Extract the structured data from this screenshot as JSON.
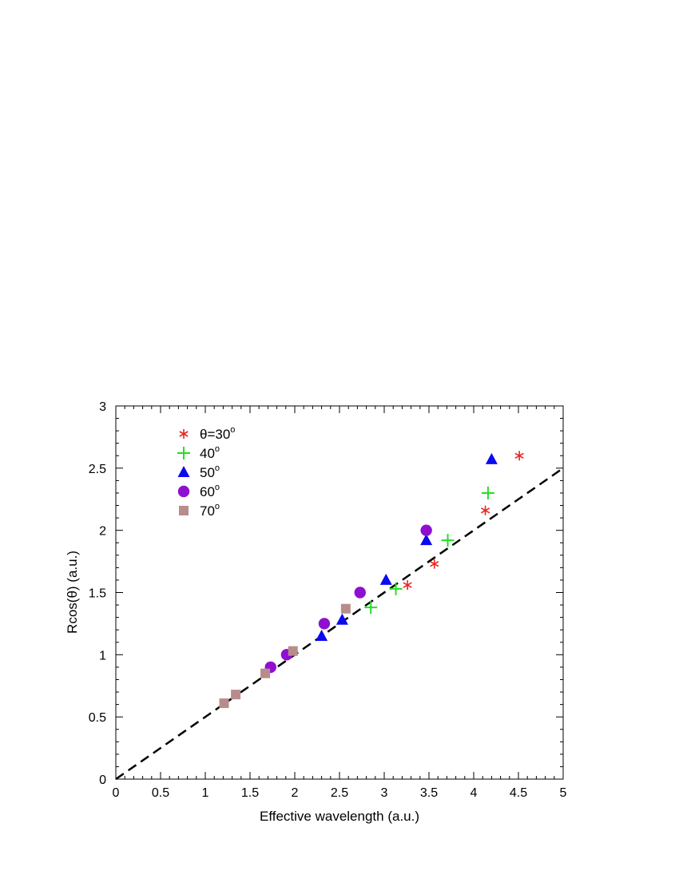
{
  "chart_data": {
    "type": "scatter",
    "xlabel": "Effective wavelength (a.u.)",
    "ylabel": "Rcos(θ) (a.u.)",
    "xlim": [
      0,
      5
    ],
    "ylim": [
      0,
      3
    ],
    "x_ticks": [
      "0",
      "0.5",
      "1",
      "1.5",
      "2",
      "2.5",
      "3",
      "3.5",
      "4",
      "4.5",
      "5"
    ],
    "y_ticks": [
      "0",
      "0.5",
      "1",
      "1.5",
      "2",
      "2.5",
      "3"
    ],
    "grid": false,
    "legend_position": "top-left",
    "series": [
      {
        "name": "θ=30°",
        "legend_text": "θ=30",
        "degree_mark": "o",
        "marker": "asterisk",
        "color": "#e8261f",
        "points": [
          [
            3.26,
            1.56
          ],
          [
            3.56,
            1.73
          ],
          [
            4.13,
            2.16
          ],
          [
            4.51,
            2.6
          ]
        ]
      },
      {
        "name": "40°",
        "legend_text": "40",
        "degree_mark": "o",
        "marker": "plus",
        "color": "#22e022",
        "points": [
          [
            2.85,
            1.38
          ],
          [
            3.13,
            1.53
          ],
          [
            3.71,
            1.92
          ],
          [
            4.16,
            2.3
          ]
        ]
      },
      {
        "name": "50°",
        "legend_text": "50",
        "degree_mark": "o",
        "marker": "triangle",
        "color": "#0a0af0",
        "points": [
          [
            2.3,
            1.15
          ],
          [
            2.53,
            1.28
          ],
          [
            3.02,
            1.6
          ],
          [
            3.47,
            1.92
          ],
          [
            4.2,
            2.57
          ]
        ]
      },
      {
        "name": "60°",
        "legend_text": "60",
        "degree_mark": "o",
        "marker": "circle",
        "color": "#8f0fd0",
        "points": [
          [
            1.73,
            0.9
          ],
          [
            1.91,
            1.0
          ],
          [
            2.33,
            1.25
          ],
          [
            2.73,
            1.5
          ],
          [
            3.47,
            2.0
          ]
        ]
      },
      {
        "name": "70°",
        "legend_text": "70",
        "degree_mark": "o",
        "marker": "square",
        "color": "#b98c8c",
        "points": [
          [
            1.21,
            0.61
          ],
          [
            1.34,
            0.68
          ],
          [
            1.67,
            0.85
          ],
          [
            1.98,
            1.03
          ],
          [
            2.57,
            1.37
          ]
        ]
      }
    ],
    "reference_line": {
      "slope": 0.5,
      "intercept": 0,
      "style": "dashed",
      "color": "#000000"
    }
  }
}
